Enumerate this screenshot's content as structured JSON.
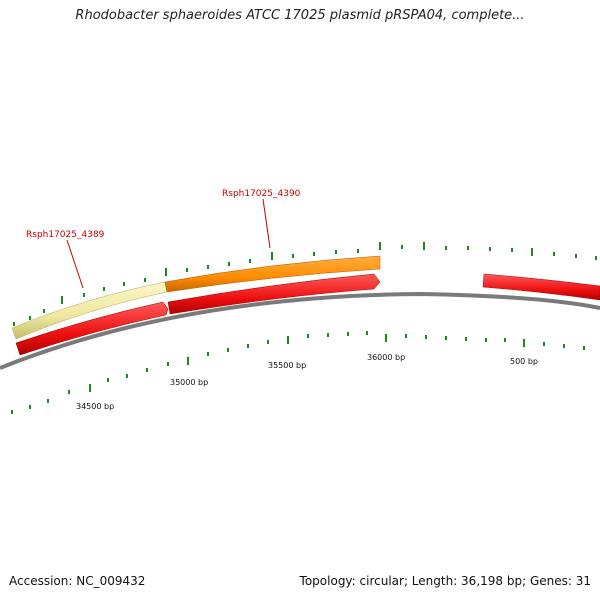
{
  "title": "Rhodobacter sphaeroides ATCC 17025 plasmid pRSPA04, complete...",
  "footer": {
    "accession": "Accession: NC_009432",
    "summary": "Topology: circular; Length: 36,198 bp; Genes: 31"
  },
  "ticks": [
    "34500 bp",
    "35000 bp",
    "35500 bp",
    "36000 bp",
    "500 bp"
  ],
  "genes": [
    {
      "label": "Rsph17025_4389",
      "color": "#f0e89a"
    },
    {
      "label": "Rsph17025_4390",
      "color": "#ff9a1a"
    }
  ],
  "colors": {
    "cds": "#ff2020",
    "backbone": "#808080",
    "tick": "#1a8a1a",
    "label": "#cc0000"
  }
}
